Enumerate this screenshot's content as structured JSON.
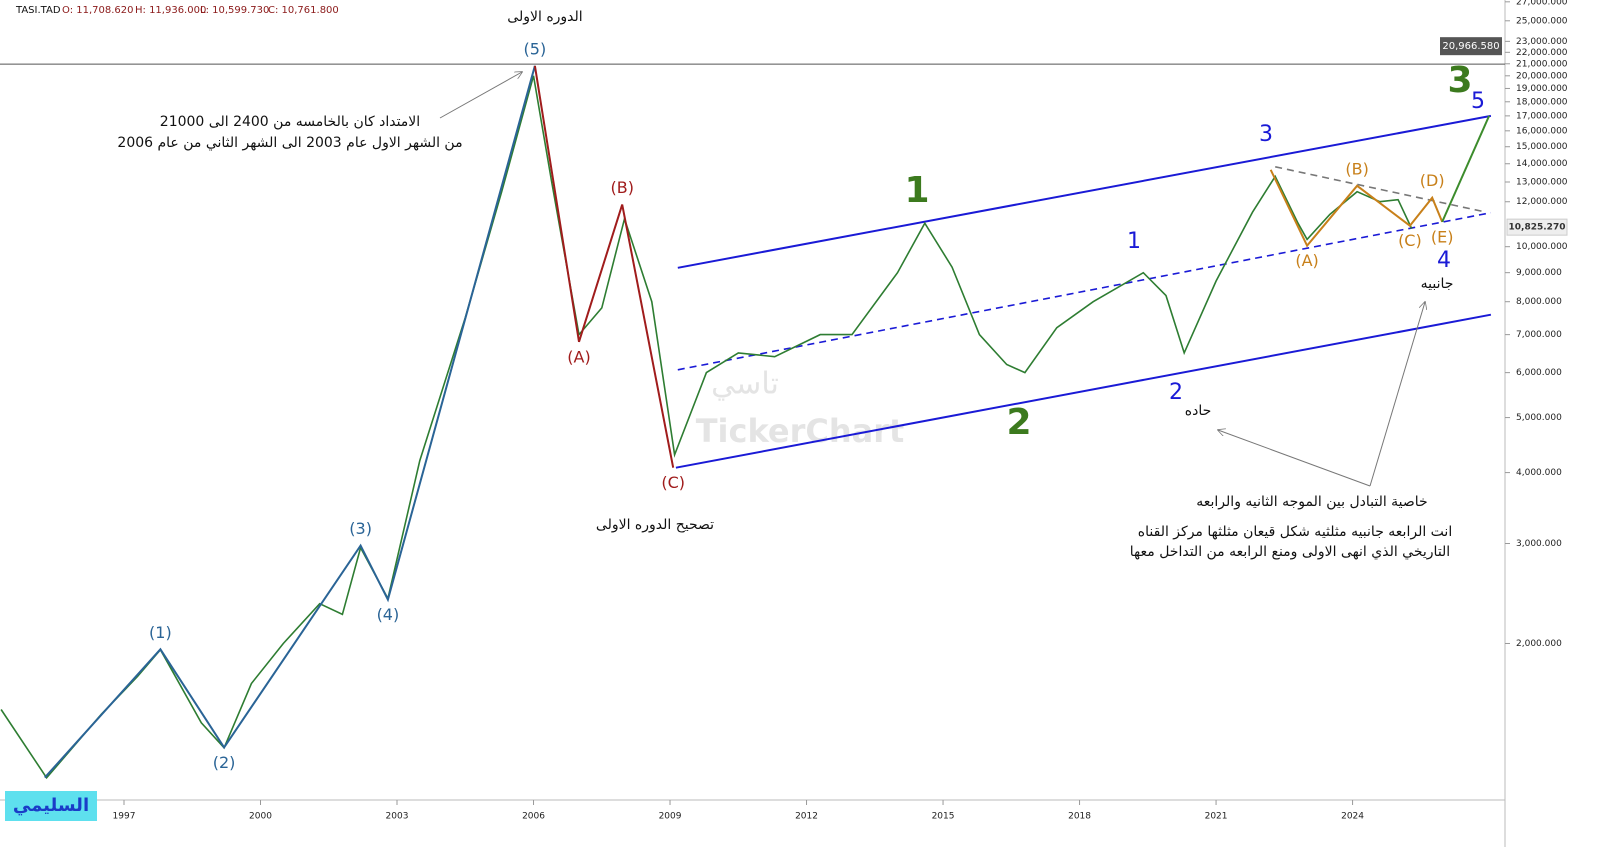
{
  "chart_data": {
    "type": "line",
    "symbol": "TASI.TAD",
    "ohlc": [
      "O: 11,708.620",
      "H: 11,936.000",
      "L: 10,599.730",
      "C: 10,761.800"
    ],
    "log_scale": true,
    "color": "#2e7d32",
    "xlim": [
      1994.275,
      2027.35
    ],
    "xticks": [
      1997,
      2000,
      2003,
      2006,
      2009,
      2012,
      2015,
      2018,
      2021,
      2024
    ],
    "ylim": [
      1060,
      27200
    ],
    "yticks": [
      {
        "value": 27000,
        "label": "27,000.000"
      },
      {
        "value": 25000,
        "label": "25,000.000"
      },
      {
        "value": 23000,
        "label": "23,000.000"
      },
      {
        "value": 22000,
        "label": "22,000.000"
      },
      {
        "value": 21000,
        "label": "21,000.000"
      },
      {
        "value": 20000,
        "label": "20,000.000"
      },
      {
        "value": 19000,
        "label": "19,000.000"
      },
      {
        "value": 18000,
        "label": "18,000.000"
      },
      {
        "value": 17000,
        "label": "17,000.000"
      },
      {
        "value": 16000,
        "label": "16,000.000"
      },
      {
        "value": 15000,
        "label": "15,000.000"
      },
      {
        "value": 14000,
        "label": "14,000.000"
      },
      {
        "value": 13000,
        "label": "13,000.000"
      },
      {
        "value": 12000,
        "label": "12,000.000"
      },
      {
        "value": 10000,
        "label": "10,000.000"
      },
      {
        "value": 9000,
        "label": "9,000.000"
      },
      {
        "value": 8000,
        "label": "8,000.000"
      },
      {
        "value": 7000,
        "label": "7,000.000"
      },
      {
        "value": 6000,
        "label": "6,000.000"
      },
      {
        "value": 5000,
        "label": "5,000.000"
      },
      {
        "value": 4000,
        "label": "4,000.000"
      },
      {
        "value": 3000,
        "label": "3,000.000"
      },
      {
        "value": 2000,
        "label": "2,000.000"
      }
    ],
    "x": [
      1994.3,
      1995.3,
      1996.5,
      1997.3,
      1997.8,
      1998.7,
      1999.2,
      1999.8,
      2000.5,
      2001.3,
      2001.8,
      2002.2,
      2002.8,
      2003.5,
      2004.5,
      2005.3,
      2006.0,
      2006.4,
      2007.0,
      2007.5,
      2008.0,
      2008.6,
      2009.1,
      2009.8,
      2010.5,
      2011.3,
      2012.3,
      2013.0,
      2014.0,
      2014.6,
      2015.2,
      2015.8,
      2016.4,
      2016.8,
      2017.5,
      2018.3,
      2019.4,
      2019.9,
      2020.3,
      2021.0,
      2021.8,
      2022.3,
      2022.8,
      2023.0,
      2023.5,
      2024.1,
      2024.6,
      2025.0,
      2025.3
    ],
    "values": [
      1530,
      1160,
      1500,
      1750,
      1950,
      1450,
      1310,
      1700,
      2000,
      2350,
      2250,
      2950,
      2400,
      4200,
      7500,
      12500,
      20000,
      13000,
      7000,
      7800,
      11200,
      8000,
      4300,
      6000,
      6500,
      6400,
      7000,
      7000,
      9000,
      11000,
      9200,
      7000,
      6200,
      6000,
      7200,
      8000,
      9000,
      8200,
      6500,
      8700,
      11500,
      13300,
      11000,
      10300,
      11400,
      12500,
      12000,
      12100,
      10762
    ],
    "price_lines": [
      {
        "value": 20966.58,
        "label": "20,966.580",
        "color": "#555555"
      },
      {
        "value": 10825.27,
        "label": "10,825.270",
        "color": "#333333"
      }
    ],
    "waves": [
      {
        "color": "#2a6496",
        "x": [
          1995.26,
          1997.8,
          1999.2,
          2002.2,
          2002.8,
          2006.03
        ],
        "values": [
          1161,
          1953,
          1312,
          2975,
          2390,
          20830
        ],
        "labels": [
          null,
          "(1)",
          "(2)",
          "(3)",
          "(4)",
          "(5)"
        ]
      },
      {
        "color": "#a01c1c",
        "x": [
          2006.03,
          2007.0,
          2007.95,
          2009.07
        ],
        "values": [
          20830,
          6800,
          11860,
          4080
        ],
        "labels": [
          null,
          "(A)",
          "(B)",
          "(C)"
        ]
      },
      {
        "color": "#c8801a",
        "x": [
          2022.2,
          2023.0,
          2024.1,
          2025.26,
          2025.75,
          2025.97
        ],
        "values": [
          13660,
          10040,
          12800,
          10890,
          12200,
          11060
        ],
        "labels": [
          null,
          "(A)",
          "(B)",
          "(C)",
          "(D)",
          "(E)"
        ]
      },
      {
        "color": "#3c8c2c",
        "x": [
          2025.97,
          2027.0
        ],
        "values": [
          11060,
          17000
        ],
        "labels": [
          null,
          null
        ]
      }
    ],
    "channels": [
      {
        "color": "#1a1ad6",
        "dashed": false,
        "x": [
          2009.17,
          2027.04
        ],
        "values": [
          9180,
          17000
        ]
      },
      {
        "color": "#1a1ad6",
        "dashed": false,
        "x": [
          2009.13,
          2027.04
        ],
        "values": [
          4080,
          7590
        ]
      },
      {
        "color": "#1a1ad6",
        "dashed": true,
        "x": [
          2009.17,
          2027.04
        ],
        "values": [
          6070,
          11480
        ]
      },
      {
        "color": "#777777",
        "dashed": true,
        "x": [
          2022.3,
          2026.9
        ],
        "values": [
          13830,
          11520
        ]
      }
    ],
    "annotations": {
      "cycle1": "الدوره الاولى",
      "ext1": "الامتداد كان بالخامسه من 2400 الى 21000",
      "ext2": "من الشهر الاول عام 2003 الى الشهر الثاني  من عام 2006",
      "correction": "تصحيح الدوره الاولى",
      "sharp": "حاده",
      "side": "جانبيه",
      "alt": "خاصية التبادل بين الموجه الثانيه والرابعه",
      "tri1": "انت الرابعه جانبيه مثلثيه شكل قيعان مثلثها مركز القناه",
      "tri2": "التاريخي الذي انهى الاولى ومنع الرابعه من التداخل معها",
      "author": "السليمي",
      "wm1": "تاسي",
      "wm2": "TickerChart"
    },
    "big_labels": {
      "g1": "1",
      "g2": "2",
      "g3": "3",
      "b1": "1",
      "b2": "2",
      "b3": "3",
      "b4": "4",
      "b5": "5"
    }
  }
}
